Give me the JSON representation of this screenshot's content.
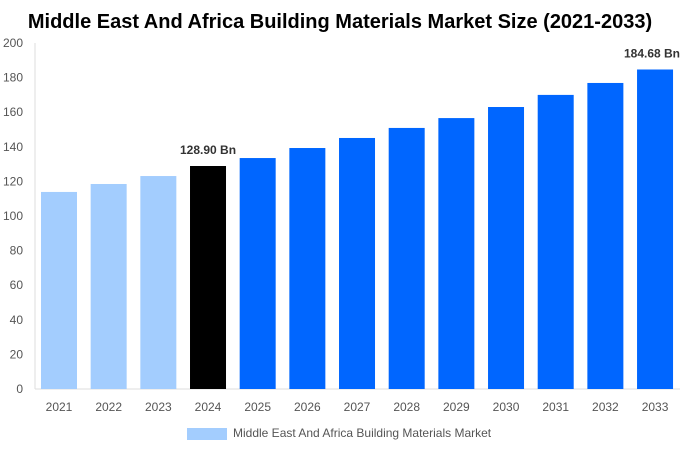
{
  "chart_data": {
    "type": "bar",
    "title": "Middle East And Africa Building Materials Market Size (2021-2033)",
    "categories": [
      "2021",
      "2022",
      "2023",
      "2024",
      "2025",
      "2026",
      "2027",
      "2028",
      "2029",
      "2030",
      "2031",
      "2032",
      "2033"
    ],
    "series": [
      {
        "name": "Middle East And Africa Building Materials Market",
        "values": [
          113.9,
          118.5,
          123.1,
          128.9,
          133.5,
          139.3,
          145.1,
          150.9,
          156.6,
          163.0,
          170.0,
          176.9,
          184.68
        ]
      }
    ],
    "data_labels": [
      {
        "category": "2024",
        "text": "128.90 Bn"
      },
      {
        "category": "2033",
        "text": "184.68 Bn"
      }
    ],
    "ylim": [
      0,
      200
    ],
    "yticks": [
      0,
      20,
      40,
      60,
      80,
      100,
      120,
      140,
      160,
      180,
      200
    ],
    "xlabel": "",
    "ylabel": "",
    "grid": false,
    "legend_position": "bottom",
    "colors": {
      "historical": "#a3cdfe",
      "base_year": "#000000",
      "forecast": "#0066ff",
      "legend_swatch": "#a3cdfe"
    },
    "base_year": "2024"
  }
}
